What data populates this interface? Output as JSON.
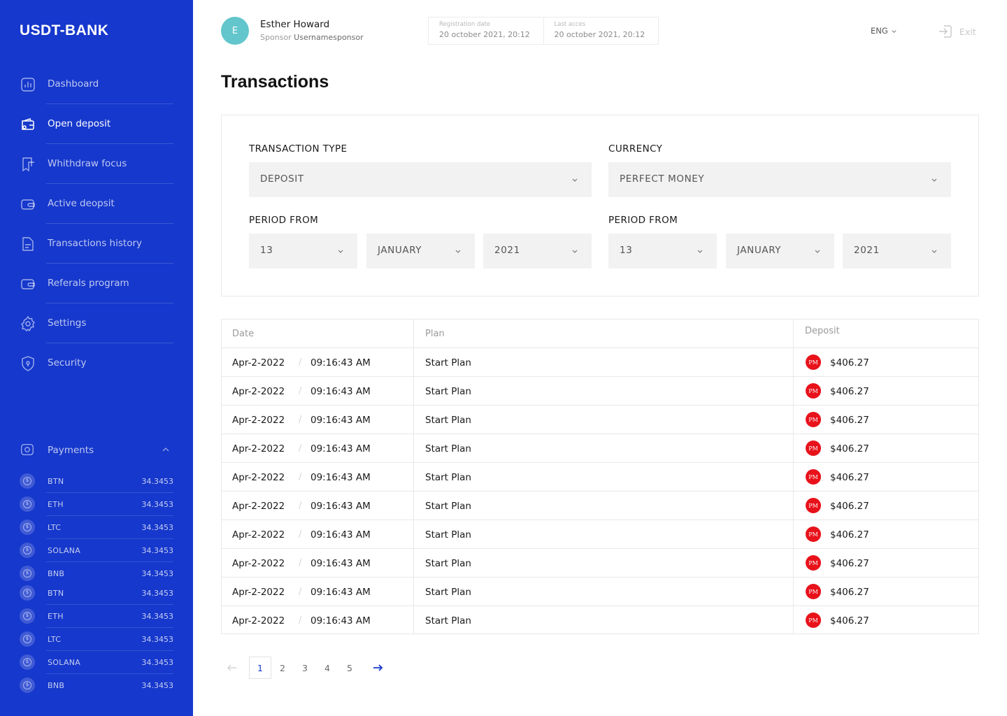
{
  "app": {
    "logo": "USDT-BANK"
  },
  "sidebar": {
    "items": [
      {
        "label": "Dashboard",
        "icon": "chart-icon",
        "active": false
      },
      {
        "label": "Open deposit",
        "icon": "wallet-icon",
        "active": true
      },
      {
        "label": "Whithdraw focus",
        "icon": "withdraw-icon",
        "active": false
      },
      {
        "label": "Active deopsit",
        "icon": "wallet-icon",
        "active": false
      },
      {
        "label": "Transactions history",
        "icon": "document-icon",
        "active": false
      },
      {
        "label": "Referals program",
        "icon": "wallet-icon",
        "active": false
      },
      {
        "label": "Settings",
        "icon": "gear-icon",
        "active": false
      },
      {
        "label": "Security",
        "icon": "shield-icon",
        "active": false
      }
    ],
    "payments": {
      "label": "Payments",
      "coins": [
        {
          "name": "BTN",
          "value": "34.3453"
        },
        {
          "name": "ETH",
          "value": "34.3453"
        },
        {
          "name": "LTC",
          "value": "34.3453"
        },
        {
          "name": "SOLANA",
          "value": "34.3453"
        },
        {
          "name": "BNB",
          "value": "34.3453"
        },
        {
          "name": "BTN",
          "value": "34.3453"
        },
        {
          "name": "ETH",
          "value": "34.3453"
        },
        {
          "name": "LTC",
          "value": "34.3453"
        },
        {
          "name": "SOLANA",
          "value": "34.3453"
        },
        {
          "name": "BNB",
          "value": "34.3453"
        }
      ]
    }
  },
  "header": {
    "avatar_initial": "E",
    "user_name": "Esther Howard",
    "sponsor_label": "Sponsor",
    "sponsor_name": "Usernamesponsor",
    "registration_label": "Registration date",
    "registration_value": "20 october 2021, 20:12",
    "last_access_label": "Last acces",
    "last_access_value": "20 october 2021, 20:12",
    "language": "ENG",
    "exit_label": "Exit"
  },
  "page": {
    "title": "Transactions"
  },
  "filters": {
    "transaction_type_label": "TRANSACTION TYPE",
    "transaction_type_value": "DEPOSIT",
    "currency_label": "CURRENCY",
    "currency_value": "PERFECT MONEY",
    "period_from_label_1": "PERIOD FROM",
    "period_from_1": {
      "day": "13",
      "month": "JANUARY",
      "year": "2021"
    },
    "period_from_label_2": "PERIOD FROM",
    "period_from_2": {
      "day": "13",
      "month": "JANUARY",
      "year": "2021"
    }
  },
  "table": {
    "headers": {
      "date": "Date",
      "plan": "Plan",
      "deposit": "Deposit"
    },
    "pm_badge": "PM",
    "rows": [
      {
        "date": "Apr-2-2022",
        "time": "09:16:43 AM",
        "plan": "Start Plan",
        "amount": "$406.27"
      },
      {
        "date": "Apr-2-2022",
        "time": "09:16:43 AM",
        "plan": "Start Plan",
        "amount": "$406.27"
      },
      {
        "date": "Apr-2-2022",
        "time": "09:16:43 AM",
        "plan": "Start Plan",
        "amount": "$406.27"
      },
      {
        "date": "Apr-2-2022",
        "time": "09:16:43 AM",
        "plan": "Start Plan",
        "amount": "$406.27"
      },
      {
        "date": "Apr-2-2022",
        "time": "09:16:43 AM",
        "plan": "Start Plan",
        "amount": "$406.27"
      },
      {
        "date": "Apr-2-2022",
        "time": "09:16:43 AM",
        "plan": "Start Plan",
        "amount": "$406.27"
      },
      {
        "date": "Apr-2-2022",
        "time": "09:16:43 AM",
        "plan": "Start Plan",
        "amount": "$406.27"
      },
      {
        "date": "Apr-2-2022",
        "time": "09:16:43 AM",
        "plan": "Start Plan",
        "amount": "$406.27"
      },
      {
        "date": "Apr-2-2022",
        "time": "09:16:43 AM",
        "plan": "Start Plan",
        "amount": "$406.27"
      },
      {
        "date": "Apr-2-2022",
        "time": "09:16:43 AM",
        "plan": "Start Plan",
        "amount": "$406.27"
      }
    ]
  },
  "pagination": {
    "pages": [
      "1",
      "2",
      "3",
      "4",
      "5"
    ],
    "current": "1"
  },
  "colors": {
    "sidebar": "#1638cc",
    "accent": "#1638cc",
    "avatar": "#62c6cc",
    "pm_badge": "#e8121b"
  }
}
